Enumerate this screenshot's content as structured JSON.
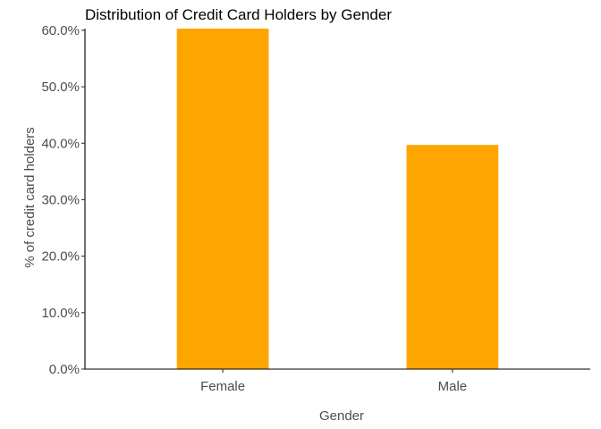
{
  "chart_data": {
    "type": "bar",
    "title": "Distribution of Credit Card Holders by Gender",
    "xlabel": "Gender",
    "ylabel": "% of credit card holders",
    "categories": [
      "Female",
      "Male"
    ],
    "values": [
      60.3,
      39.7
    ],
    "ylim": [
      0,
      60.3
    ],
    "yticks": [
      0,
      10,
      20,
      30,
      40,
      50,
      60
    ],
    "ytick_labels": [
      "0.0%",
      "10.0%",
      "20.0%",
      "30.0%",
      "40.0%",
      "50.0%",
      "60.0%"
    ],
    "bar_color": "#FFA500",
    "grid": false,
    "legend": "none"
  }
}
